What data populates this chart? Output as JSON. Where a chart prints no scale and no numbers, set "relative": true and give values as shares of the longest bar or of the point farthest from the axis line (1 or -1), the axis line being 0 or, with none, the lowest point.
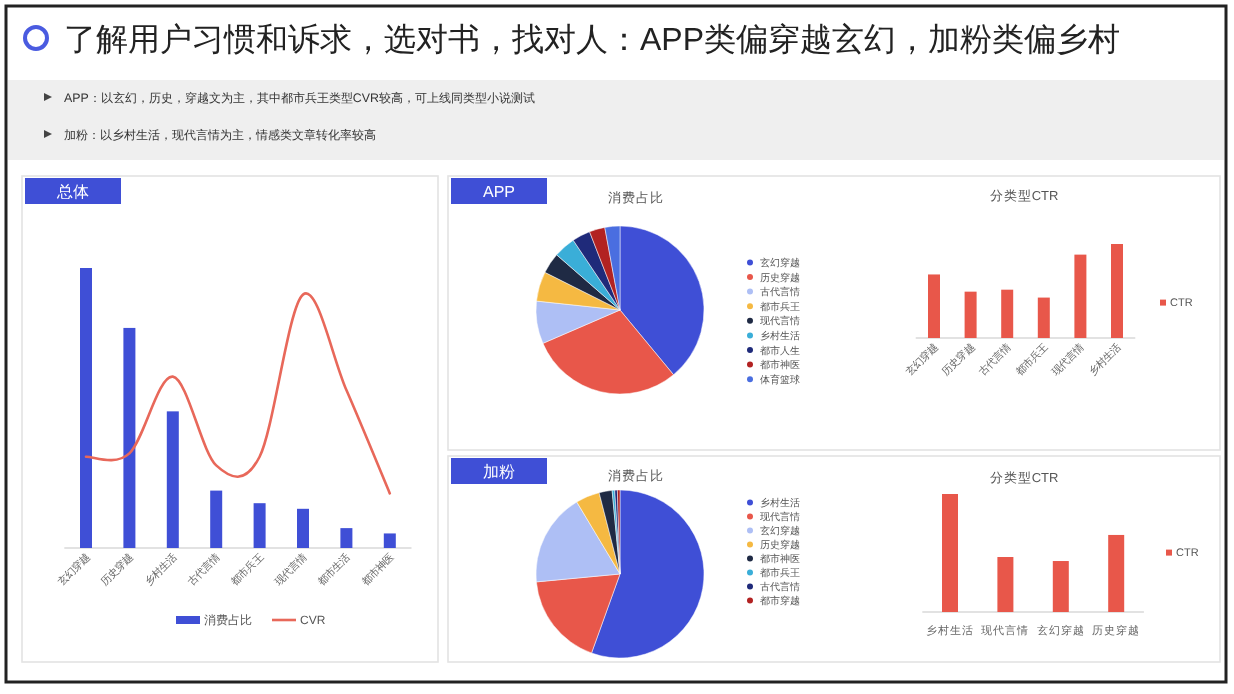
{
  "chart_data": [
    {
      "type": "other",
      "title": "了解用户习惯和诉求，选对书，找对人：APP类偏穿越玄幻，加粉类偏乡村",
      "annotations": [
        "APP：以玄幻，历史，穿越文为主，其中都市兵王类型CVR较高，可上线同类型小说测试",
        "加粉：以乡村生活，现代言情为主，情感类文章转化率较高"
      ]
    },
    {
      "type": "bar",
      "title": "总体",
      "relative": true,
      "legend": "bottom",
      "categories": [
        "玄幻穿越",
        "历史穿越",
        "乡村生活",
        "古代言情",
        "都市兵王",
        "现代言情",
        "都市生活",
        "都市神医"
      ],
      "series": [
        {
          "name": "消费占比",
          "color": "#3f4fd6",
          "values": [
            1,
            0.786,
            0.488,
            0.205,
            0.16,
            0.14,
            0.071,
            0.052
          ]
        },
        {
          "name": "CVR",
          "type": "line",
          "color": "#e8685a",
          "values": [
            0.326,
            0.338,
            0.612,
            0.295,
            0.326,
            0.905,
            0.564,
            0.195
          ]
        }
      ]
    },
    {
      "type": "pie",
      "title": "APP",
      "subtitle": "消费占比",
      "legend": "right",
      "categories": [
        "玄幻穿越",
        "历史穿越",
        "古代言情",
        "都市兵王",
        "现代言情",
        "乡村生活",
        "都市人生",
        "都市神医",
        "体育篮球"
      ],
      "values": [
        39,
        29.5,
        8.2,
        5.7,
        4,
        4.2,
        3.5,
        3,
        2.9
      ],
      "colors": [
        "#3f4fd6",
        "#e8574a",
        "#aebff5",
        "#f5b942",
        "#1f2a44",
        "#3aaed8",
        "#1f2a7a",
        "#b22222",
        "#4a6ee0"
      ]
    },
    {
      "type": "bar",
      "title": "分类型CTR",
      "relative": true,
      "legend": "right",
      "categories": [
        "玄幻穿越",
        "历史穿越",
        "古代言情",
        "都市兵王",
        "现代言情",
        "乡村生活"
      ],
      "series": [
        {
          "name": "CTR",
          "color": "#e8574a",
          "values": [
            0.676,
            0.493,
            0.514,
            0.43,
            0.887,
            1
          ]
        }
      ]
    },
    {
      "type": "pie",
      "title": "加粉",
      "subtitle": "消费占比",
      "legend": "right",
      "categories": [
        "乡村生活",
        "现代言情",
        "玄幻穿越",
        "历史穿越",
        "都市神医",
        "都市兵王",
        "古代言情",
        "都市穿越"
      ],
      "values": [
        55.5,
        18,
        17.9,
        4.6,
        2.5,
        0.5,
        0.5,
        0.5
      ],
      "colors": [
        "#3f4fd6",
        "#e8574a",
        "#aebff5",
        "#f5b942",
        "#1f2a44",
        "#3aaed8",
        "#1f2a7a",
        "#b22222"
      ]
    },
    {
      "type": "bar",
      "title": "分类型CTR",
      "relative": true,
      "legend": "right",
      "categories": [
        "乡村生活",
        "现代言情",
        "玄幻穿越",
        "历史穿越"
      ],
      "series": [
        {
          "name": "CTR",
          "color": "#e8574a",
          "values": [
            1,
            0.466,
            0.432,
            0.653
          ]
        }
      ]
    }
  ]
}
